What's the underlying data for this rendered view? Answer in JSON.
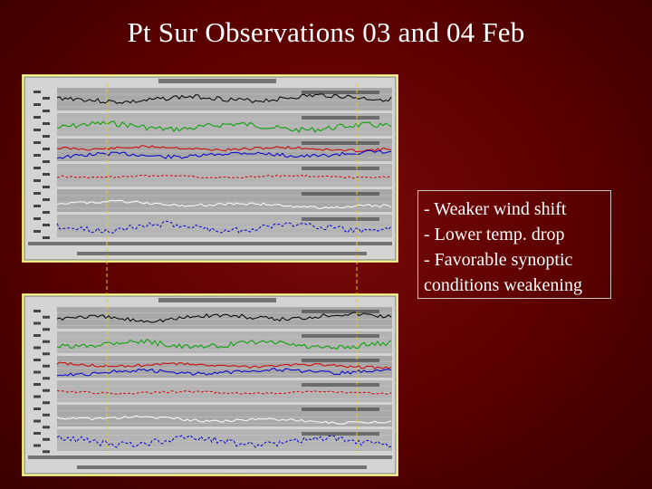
{
  "slide": {
    "title": "Pt Sur Observations 03 and 04 Feb"
  },
  "notes": [
    "- Weaker wind shift",
    "- Lower temp. drop",
    "- Favorable synoptic",
    "conditions weakening"
  ],
  "colors": {
    "background": "#5a0000",
    "panel_frame": "#ffff99",
    "chart_band": "#a8a8a8",
    "wind": "#000000",
    "direction": "#00a000",
    "temperature": "#d00000",
    "dew_point": "#0000d0",
    "pressure": "#ffffff",
    "heading": "#0000d0"
  }
}
